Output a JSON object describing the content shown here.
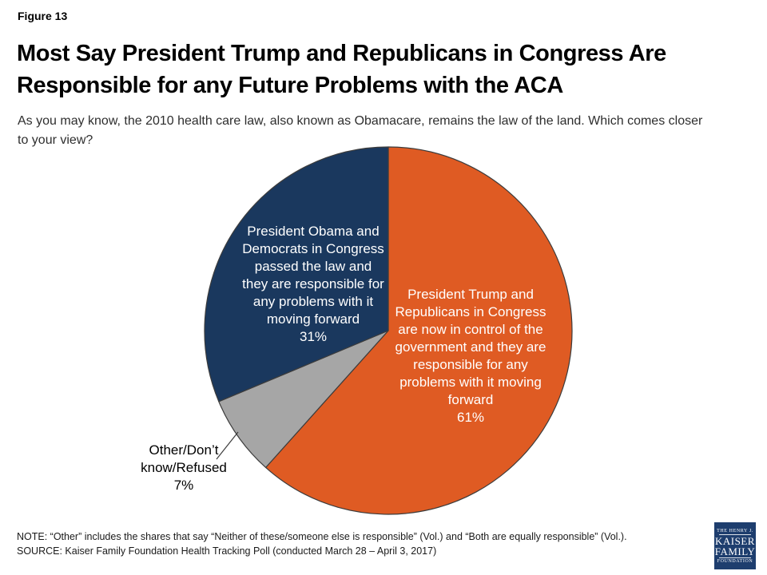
{
  "figure_label": "Figure 13",
  "title": "Most Say President Trump and Republicans in Congress Are\nResponsible for any Future Problems with the ACA",
  "subtitle": "As you may know, the 2010 health care law, also known as Obamacare, remains the law of the land. Which comes closer\nto your view?",
  "chart_data": {
    "type": "pie",
    "title": "Most Say President Trump and Republicans in Congress Are Responsible for any Future Problems with the ACA",
    "start_angle_deg": 0,
    "direction": "clockwise",
    "slices": [
      {
        "name": "trump-republicans",
        "category": "President Trump and Republicans in Congress are now in control of the government and they are responsible for any problems with it moving forward",
        "value": 61,
        "color": "#DF5B23",
        "label": "President Trump and\nRepublicans in Congress\nare now in control of the\ngovernment and they are\nresponsible for any\nproblems with it moving\nforward\n61%",
        "label_position": "inside"
      },
      {
        "name": "other-dont-know-refused",
        "category": "Other/Don’t know/Refused",
        "value": 7,
        "color": "#A6A6A6",
        "label": "Other/Don’t\nknow/Refused\n7%",
        "label_position": "outside"
      },
      {
        "name": "obama-democrats",
        "category": "President Obama and Democrats in Congress passed the law and they are responsible for any problems with it moving forward",
        "value": 31,
        "color": "#1A385E",
        "label": "President Obama and\nDemocrats in Congress\npassed the law and\nthey are responsible for\nany problems with it\nmoving forward\n31%",
        "label_position": "inside"
      }
    ],
    "outline_color": "#3C3C3C"
  },
  "note": "NOTE: “Other” includes the shares that say “Neither of these/someone else is responsible” (Vol.) and “Both are equally responsible” (Vol.).",
  "source": "SOURCE: Kaiser Family Foundation Health Tracking Poll (conducted March 28 – April 3, 2017)",
  "logo": {
    "line1": "THE HENRY J.",
    "line2": "KAISER",
    "line3": "FAMILY",
    "line4": "FOUNDATION"
  }
}
